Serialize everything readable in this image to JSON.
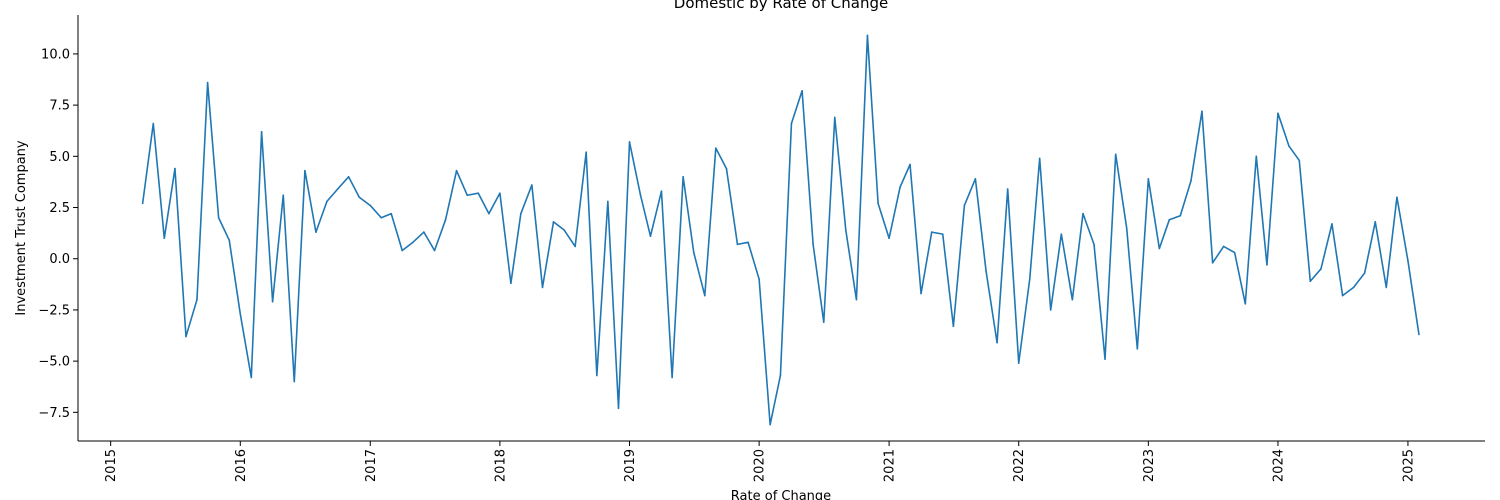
{
  "chart_data": {
    "type": "line",
    "title": "Domestic by Rate of Change",
    "xlabel": "Rate of Change",
    "ylabel": "Investment Trust Company",
    "xlim": [
      "2014-10-01",
      "2025-08-06"
    ],
    "ylim": [
      -8.9,
      11.9
    ],
    "x_ticks": [
      "2015",
      "2016",
      "2017",
      "2018",
      "2019",
      "2020",
      "2021",
      "2022",
      "2023",
      "2024",
      "2025"
    ],
    "y_ticks": [
      "−7.5",
      "−5.0",
      "−2.5",
      "0.0",
      "2.5",
      "5.0",
      "7.5",
      "10.0"
    ],
    "y_tick_values": [
      -7.5,
      -5.0,
      -2.5,
      0.0,
      2.5,
      5.0,
      7.5,
      10.0
    ],
    "grid": false,
    "series": [
      {
        "color": "#1f77b4",
        "x": [
          "2015-04",
          "2015-05",
          "2015-06",
          "2015-07",
          "2015-08",
          "2015-09",
          "2015-10",
          "2015-11",
          "2015-12",
          "2016-01",
          "2016-02",
          "2016-03",
          "2016-04",
          "2016-05",
          "2016-06",
          "2016-07",
          "2016-08",
          "2016-09",
          "2016-10",
          "2016-11",
          "2016-12",
          "2017-01",
          "2017-02",
          "2017-03",
          "2017-04",
          "2017-05",
          "2017-06",
          "2017-07",
          "2017-08",
          "2017-09",
          "2017-10",
          "2017-11",
          "2017-12",
          "2018-01",
          "2018-02",
          "2018-03",
          "2018-04",
          "2018-05",
          "2018-06",
          "2018-07",
          "2018-08",
          "2018-09",
          "2018-10",
          "2018-11",
          "2018-12",
          "2019-01",
          "2019-02",
          "2019-03",
          "2019-04",
          "2019-05",
          "2019-06",
          "2019-07",
          "2019-08",
          "2019-09",
          "2019-10",
          "2019-11",
          "2019-12",
          "2020-01",
          "2020-02",
          "2020-03",
          "2020-04",
          "2020-05",
          "2020-06",
          "2020-07",
          "2020-08",
          "2020-09",
          "2020-10",
          "2020-11",
          "2020-12",
          "2021-01",
          "2021-02",
          "2021-03",
          "2021-04",
          "2021-05",
          "2021-06",
          "2021-07",
          "2021-08",
          "2021-09",
          "2021-10",
          "2021-11",
          "2021-12",
          "2022-01",
          "2022-02",
          "2022-03",
          "2022-04",
          "2022-05",
          "2022-06",
          "2022-07",
          "2022-08",
          "2022-09",
          "2022-10",
          "2022-11",
          "2022-12",
          "2023-01",
          "2023-02",
          "2023-03",
          "2023-04",
          "2023-05",
          "2023-06",
          "2023-07",
          "2023-08",
          "2023-09",
          "2023-10",
          "2023-11",
          "2023-12",
          "2024-01",
          "2024-02",
          "2024-03",
          "2024-04",
          "2024-05",
          "2024-06",
          "2024-07",
          "2024-08",
          "2024-09",
          "2024-10",
          "2024-11",
          "2024-12",
          "2025-01",
          "2025-02"
        ],
        "values": [
          2.7,
          6.6,
          1.0,
          4.4,
          -3.8,
          -2.0,
          8.6,
          2.0,
          0.9,
          -2.7,
          -5.8,
          6.2,
          -2.1,
          3.1,
          -6.0,
          4.3,
          1.3,
          2.8,
          3.4,
          4.0,
          3.0,
          2.6,
          2.0,
          2.2,
          0.4,
          0.8,
          1.3,
          0.4,
          1.9,
          4.3,
          3.1,
          3.2,
          2.2,
          3.2,
          -1.2,
          2.2,
          3.6,
          -1.4,
          1.8,
          1.4,
          0.6,
          5.2,
          -5.7,
          2.8,
          -7.3,
          5.7,
          3.1,
          1.1,
          3.3,
          -5.8,
          4.0,
          0.3,
          -1.8,
          5.4,
          4.4,
          0.7,
          0.8,
          -1.0,
          -8.1,
          -5.7,
          6.6,
          8.2,
          0.7,
          -3.1,
          6.9,
          1.4,
          -2.0,
          10.9,
          2.7,
          1.0,
          3.5,
          4.6,
          -1.7,
          1.3,
          1.2,
          -3.3,
          2.6,
          3.9,
          -0.6,
          -4.1,
          3.4,
          -5.1,
          -1.0,
          4.9,
          -2.5,
          1.2,
          -2.0,
          2.2,
          0.7,
          -4.9,
          5.1,
          1.5,
          -4.4,
          3.9,
          0.5,
          1.9,
          2.1,
          3.8,
          7.2,
          -0.2,
          0.6,
          0.3,
          -2.2,
          5.0,
          -0.3,
          7.1,
          5.5,
          4.8,
          -1.1,
          -0.5,
          1.7,
          -1.8,
          -1.4,
          -0.7,
          1.8,
          -1.4,
          3.0,
          -0.1,
          -3.7
        ]
      }
    ]
  }
}
